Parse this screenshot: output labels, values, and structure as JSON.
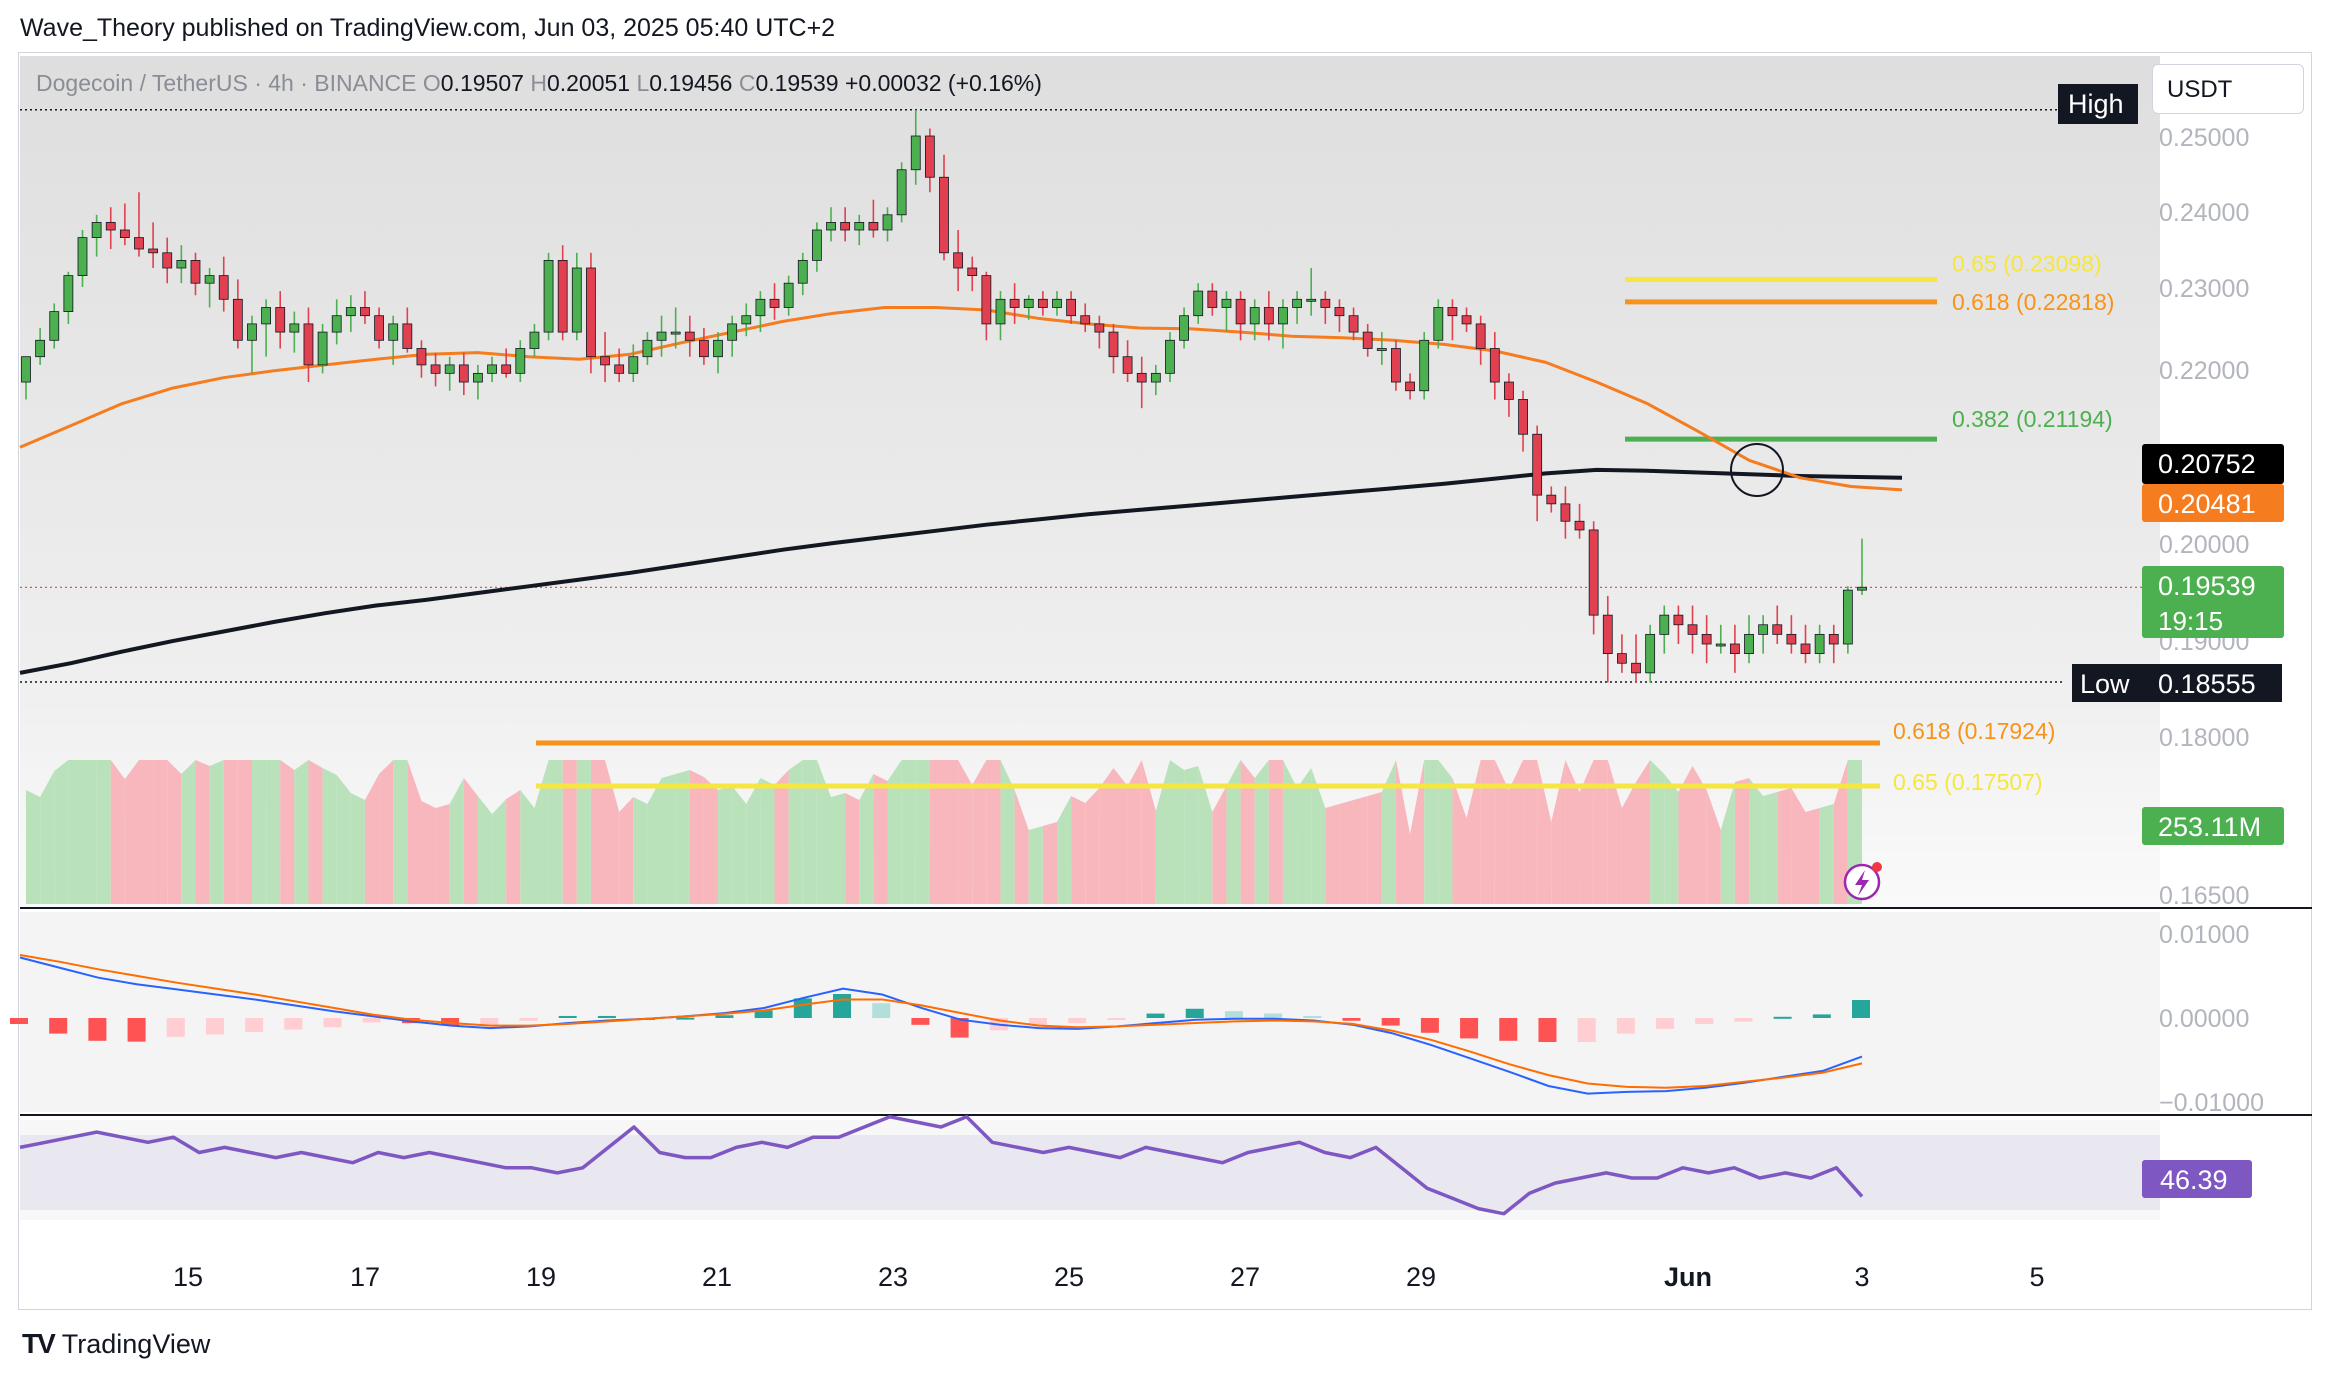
{
  "header": {
    "publisher_line": "Wave_Theory published on TradingView.com, Jun 03, 2025 05:40 UTC+2"
  },
  "symbol": {
    "name": "Dogecoin / TetherUS · 4h · BINANCE",
    "open_label": "O",
    "open": "0.19507",
    "high_label": "H",
    "high": "0.20051",
    "low_label": "L",
    "low": "0.19456",
    "close_label": "C",
    "close": "0.19539",
    "change": "+0.00032 (+0.16%)"
  },
  "currency_button": "USDT",
  "footer": {
    "logo": "TV",
    "brand": "TradingView"
  },
  "chart_data": {
    "type": "candlestick",
    "interval": "4h",
    "x_ticks": [
      "15",
      "17",
      "19",
      "21",
      "23",
      "25",
      "27",
      "29",
      "Jun",
      "3",
      "5"
    ],
    "price_ticks": [
      "0.25000",
      "0.24000",
      "0.23000",
      "0.22000",
      "0.20000",
      "0.19000",
      "0.18000",
      "0.16500"
    ],
    "price_anchors": [
      {
        "p": 0.25,
        "y": 136
      },
      {
        "p": 0.24,
        "y": 211
      },
      {
        "p": 0.23,
        "y": 287
      },
      {
        "p": 0.22,
        "y": 369
      },
      {
        "p": 0.2,
        "y": 543
      },
      {
        "p": 0.18555,
        "y": 682
      },
      {
        "p": 0.18,
        "y": 736
      },
      {
        "p": 0.165,
        "y": 894
      }
    ],
    "price_axis_labels": [
      {
        "text": "0.20752",
        "bg": "#000000",
        "fg": "#ffffff"
      },
      {
        "text": "0.20481",
        "bg": "#f57c1f",
        "fg": "#ffffff"
      },
      {
        "text": "0.19539",
        "bg": "#4caf50",
        "fg": "#ffffff",
        "sub": "19:15"
      },
      {
        "text": "253.11M",
        "bg": "#4caf50",
        "fg": "#ffffff"
      }
    ],
    "high_marker": {
      "label": "High"
    },
    "low_marker": {
      "label": "Low",
      "value": "0.18555"
    },
    "fib_levels": [
      {
        "label": "0.65 (0.23098)",
        "price": 0.23098,
        "color": "#f5e642"
      },
      {
        "label": "0.618 (0.22818)",
        "price": 0.22818,
        "color": "#f7931a"
      },
      {
        "label": "0.382 (0.21194)",
        "price": 0.21194,
        "color": "#4caf50"
      },
      {
        "label": "0.618 (0.17924)",
        "price": 0.17924,
        "color": "#f7931a"
      },
      {
        "label": "0.65 (0.17507)",
        "price": 0.17507,
        "color": "#f5e642"
      }
    ],
    "candles": [
      {
        "o": 0.2185,
        "h": 0.2215,
        "l": 0.2165,
        "c": 0.2215
      },
      {
        "o": 0.2215,
        "h": 0.225,
        "l": 0.2205,
        "c": 0.2235
      },
      {
        "o": 0.2235,
        "h": 0.228,
        "l": 0.2225,
        "c": 0.227
      },
      {
        "o": 0.227,
        "h": 0.232,
        "l": 0.2255,
        "c": 0.2315
      },
      {
        "o": 0.2315,
        "h": 0.2375,
        "l": 0.23,
        "c": 0.2365
      },
      {
        "o": 0.2365,
        "h": 0.2395,
        "l": 0.234,
        "c": 0.2385
      },
      {
        "o": 0.2385,
        "h": 0.2405,
        "l": 0.235,
        "c": 0.2375
      },
      {
        "o": 0.2375,
        "h": 0.241,
        "l": 0.2355,
        "c": 0.2365
      },
      {
        "o": 0.2365,
        "h": 0.2425,
        "l": 0.234,
        "c": 0.235
      },
      {
        "o": 0.235,
        "h": 0.2385,
        "l": 0.2325,
        "c": 0.2345
      },
      {
        "o": 0.2345,
        "h": 0.2365,
        "l": 0.2305,
        "c": 0.2325
      },
      {
        "o": 0.2325,
        "h": 0.2355,
        "l": 0.2305,
        "c": 0.2335
      },
      {
        "o": 0.2335,
        "h": 0.2345,
        "l": 0.229,
        "c": 0.2305
      },
      {
        "o": 0.2305,
        "h": 0.2325,
        "l": 0.2275,
        "c": 0.2315
      },
      {
        "o": 0.2315,
        "h": 0.234,
        "l": 0.227,
        "c": 0.2285
      },
      {
        "o": 0.2285,
        "h": 0.231,
        "l": 0.2225,
        "c": 0.2235
      },
      {
        "o": 0.2235,
        "h": 0.2265,
        "l": 0.2195,
        "c": 0.2255
      },
      {
        "o": 0.2255,
        "h": 0.2285,
        "l": 0.2215,
        "c": 0.2275
      },
      {
        "o": 0.2275,
        "h": 0.2295,
        "l": 0.2225,
        "c": 0.2245
      },
      {
        "o": 0.2245,
        "h": 0.227,
        "l": 0.222,
        "c": 0.2255
      },
      {
        "o": 0.2255,
        "h": 0.2275,
        "l": 0.2185,
        "c": 0.2205
      },
      {
        "o": 0.2205,
        "h": 0.2255,
        "l": 0.2195,
        "c": 0.2245
      },
      {
        "o": 0.2245,
        "h": 0.2285,
        "l": 0.223,
        "c": 0.2265
      },
      {
        "o": 0.2265,
        "h": 0.229,
        "l": 0.2245,
        "c": 0.2275
      },
      {
        "o": 0.2275,
        "h": 0.2295,
        "l": 0.2255,
        "c": 0.2265
      },
      {
        "o": 0.2265,
        "h": 0.2275,
        "l": 0.2225,
        "c": 0.2235
      },
      {
        "o": 0.2235,
        "h": 0.2265,
        "l": 0.2205,
        "c": 0.2255
      },
      {
        "o": 0.2255,
        "h": 0.2275,
        "l": 0.222,
        "c": 0.2225
      },
      {
        "o": 0.2225,
        "h": 0.2235,
        "l": 0.219,
        "c": 0.2205
      },
      {
        "o": 0.2205,
        "h": 0.222,
        "l": 0.218,
        "c": 0.2195
      },
      {
        "o": 0.2195,
        "h": 0.2215,
        "l": 0.2175,
        "c": 0.2205
      },
      {
        "o": 0.2205,
        "h": 0.222,
        "l": 0.217,
        "c": 0.2185
      },
      {
        "o": 0.2185,
        "h": 0.2205,
        "l": 0.2165,
        "c": 0.2195
      },
      {
        "o": 0.2195,
        "h": 0.2215,
        "l": 0.2185,
        "c": 0.2205
      },
      {
        "o": 0.2205,
        "h": 0.2225,
        "l": 0.219,
        "c": 0.2195
      },
      {
        "o": 0.2195,
        "h": 0.2235,
        "l": 0.2185,
        "c": 0.2225
      },
      {
        "o": 0.2225,
        "h": 0.2255,
        "l": 0.2215,
        "c": 0.2245
      },
      {
        "o": 0.2245,
        "h": 0.2345,
        "l": 0.2235,
        "c": 0.2335
      },
      {
        "o": 0.2335,
        "h": 0.2355,
        "l": 0.2235,
        "c": 0.2245
      },
      {
        "o": 0.2245,
        "h": 0.2345,
        "l": 0.2235,
        "c": 0.2325
      },
      {
        "o": 0.2325,
        "h": 0.2345,
        "l": 0.2195,
        "c": 0.2215
      },
      {
        "o": 0.2215,
        "h": 0.2245,
        "l": 0.2185,
        "c": 0.2205
      },
      {
        "o": 0.2205,
        "h": 0.2225,
        "l": 0.2185,
        "c": 0.2195
      },
      {
        "o": 0.2195,
        "h": 0.223,
        "l": 0.2185,
        "c": 0.2215
      },
      {
        "o": 0.2215,
        "h": 0.2245,
        "l": 0.2205,
        "c": 0.2235
      },
      {
        "o": 0.2235,
        "h": 0.2265,
        "l": 0.2215,
        "c": 0.2245
      },
      {
        "o": 0.2245,
        "h": 0.2275,
        "l": 0.2225,
        "c": 0.2245
      },
      {
        "o": 0.2245,
        "h": 0.2265,
        "l": 0.2215,
        "c": 0.2235
      },
      {
        "o": 0.2235,
        "h": 0.225,
        "l": 0.2205,
        "c": 0.2215
      },
      {
        "o": 0.2215,
        "h": 0.2245,
        "l": 0.2195,
        "c": 0.2235
      },
      {
        "o": 0.2235,
        "h": 0.2265,
        "l": 0.2215,
        "c": 0.2255
      },
      {
        "o": 0.2255,
        "h": 0.228,
        "l": 0.224,
        "c": 0.2265
      },
      {
        "o": 0.2265,
        "h": 0.2295,
        "l": 0.2245,
        "c": 0.2285
      },
      {
        "o": 0.2285,
        "h": 0.2305,
        "l": 0.226,
        "c": 0.2275
      },
      {
        "o": 0.2275,
        "h": 0.2315,
        "l": 0.2265,
        "c": 0.2305
      },
      {
        "o": 0.2305,
        "h": 0.2345,
        "l": 0.229,
        "c": 0.2335
      },
      {
        "o": 0.2335,
        "h": 0.2385,
        "l": 0.232,
        "c": 0.2375
      },
      {
        "o": 0.2375,
        "h": 0.2405,
        "l": 0.236,
        "c": 0.2385
      },
      {
        "o": 0.2385,
        "h": 0.2405,
        "l": 0.236,
        "c": 0.2375
      },
      {
        "o": 0.2375,
        "h": 0.2395,
        "l": 0.2355,
        "c": 0.2385
      },
      {
        "o": 0.2385,
        "h": 0.2415,
        "l": 0.2365,
        "c": 0.2375
      },
      {
        "o": 0.2375,
        "h": 0.2405,
        "l": 0.236,
        "c": 0.2395
      },
      {
        "o": 0.2395,
        "h": 0.2465,
        "l": 0.2385,
        "c": 0.2455
      },
      {
        "o": 0.2455,
        "h": 0.2535,
        "l": 0.2435,
        "c": 0.25
      },
      {
        "o": 0.25,
        "h": 0.251,
        "l": 0.2425,
        "c": 0.2445
      },
      {
        "o": 0.2445,
        "h": 0.2475,
        "l": 0.2335,
        "c": 0.2345
      },
      {
        "o": 0.2345,
        "h": 0.2375,
        "l": 0.2295,
        "c": 0.2325
      },
      {
        "o": 0.2325,
        "h": 0.234,
        "l": 0.2295,
        "c": 0.2315
      },
      {
        "o": 0.2315,
        "h": 0.232,
        "l": 0.2235,
        "c": 0.2255
      },
      {
        "o": 0.2255,
        "h": 0.2295,
        "l": 0.2235,
        "c": 0.2285
      },
      {
        "o": 0.2285,
        "h": 0.2305,
        "l": 0.2255,
        "c": 0.2275
      },
      {
        "o": 0.2275,
        "h": 0.229,
        "l": 0.226,
        "c": 0.2285
      },
      {
        "o": 0.2285,
        "h": 0.2295,
        "l": 0.2265,
        "c": 0.2275
      },
      {
        "o": 0.2275,
        "h": 0.2295,
        "l": 0.2265,
        "c": 0.2285
      },
      {
        "o": 0.2285,
        "h": 0.2295,
        "l": 0.2255,
        "c": 0.2265
      },
      {
        "o": 0.2265,
        "h": 0.228,
        "l": 0.2245,
        "c": 0.2255
      },
      {
        "o": 0.2255,
        "h": 0.2265,
        "l": 0.2225,
        "c": 0.2245
      },
      {
        "o": 0.2245,
        "h": 0.2255,
        "l": 0.2195,
        "c": 0.2215
      },
      {
        "o": 0.2215,
        "h": 0.2235,
        "l": 0.2185,
        "c": 0.2195
      },
      {
        "o": 0.2195,
        "h": 0.2215,
        "l": 0.2155,
        "c": 0.2185
      },
      {
        "o": 0.2185,
        "h": 0.2205,
        "l": 0.217,
        "c": 0.2195
      },
      {
        "o": 0.2195,
        "h": 0.2245,
        "l": 0.2185,
        "c": 0.2235
      },
      {
        "o": 0.2235,
        "h": 0.2275,
        "l": 0.2225,
        "c": 0.2265
      },
      {
        "o": 0.2265,
        "h": 0.2305,
        "l": 0.2255,
        "c": 0.2295
      },
      {
        "o": 0.2295,
        "h": 0.2305,
        "l": 0.2265,
        "c": 0.2275
      },
      {
        "o": 0.2275,
        "h": 0.2295,
        "l": 0.2245,
        "c": 0.2285
      },
      {
        "o": 0.2285,
        "h": 0.2295,
        "l": 0.2235,
        "c": 0.2255
      },
      {
        "o": 0.2255,
        "h": 0.2285,
        "l": 0.2235,
        "c": 0.2275
      },
      {
        "o": 0.2275,
        "h": 0.2295,
        "l": 0.2235,
        "c": 0.2255
      },
      {
        "o": 0.2255,
        "h": 0.2285,
        "l": 0.2225,
        "c": 0.2275
      },
      {
        "o": 0.2275,
        "h": 0.2295,
        "l": 0.2255,
        "c": 0.2285
      },
      {
        "o": 0.2285,
        "h": 0.2325,
        "l": 0.2265,
        "c": 0.2285
      },
      {
        "o": 0.2285,
        "h": 0.2295,
        "l": 0.2255,
        "c": 0.2275
      },
      {
        "o": 0.2275,
        "h": 0.2285,
        "l": 0.2245,
        "c": 0.2265
      },
      {
        "o": 0.2265,
        "h": 0.2275,
        "l": 0.2235,
        "c": 0.2245
      },
      {
        "o": 0.2245,
        "h": 0.2255,
        "l": 0.2215,
        "c": 0.2225
      },
      {
        "o": 0.2225,
        "h": 0.2245,
        "l": 0.2205,
        "c": 0.2225
      },
      {
        "o": 0.2225,
        "h": 0.2235,
        "l": 0.2175,
        "c": 0.2185
      },
      {
        "o": 0.2185,
        "h": 0.2195,
        "l": 0.2165,
        "c": 0.2175
      },
      {
        "o": 0.2175,
        "h": 0.2245,
        "l": 0.2165,
        "c": 0.2235
      },
      {
        "o": 0.2235,
        "h": 0.2285,
        "l": 0.2225,
        "c": 0.2275
      },
      {
        "o": 0.2275,
        "h": 0.2285,
        "l": 0.2235,
        "c": 0.2265
      },
      {
        "o": 0.2265,
        "h": 0.2275,
        "l": 0.2245,
        "c": 0.2255
      },
      {
        "o": 0.2255,
        "h": 0.2265,
        "l": 0.2205,
        "c": 0.2225
      },
      {
        "o": 0.2225,
        "h": 0.2245,
        "l": 0.2165,
        "c": 0.2185
      },
      {
        "o": 0.2185,
        "h": 0.2195,
        "l": 0.2145,
        "c": 0.2165
      },
      {
        "o": 0.2165,
        "h": 0.2175,
        "l": 0.2105,
        "c": 0.2125
      },
      {
        "o": 0.2125,
        "h": 0.2135,
        "l": 0.2025,
        "c": 0.2055
      },
      {
        "o": 0.2055,
        "h": 0.2065,
        "l": 0.2035,
        "c": 0.2045
      },
      {
        "o": 0.2045,
        "h": 0.2065,
        "l": 0.2005,
        "c": 0.2025
      },
      {
        "o": 0.2025,
        "h": 0.2045,
        "l": 0.2005,
        "c": 0.2015
      },
      {
        "o": 0.2015,
        "h": 0.2025,
        "l": 0.1905,
        "c": 0.1925
      },
      {
        "o": 0.1925,
        "h": 0.1945,
        "l": 0.1855,
        "c": 0.1885
      },
      {
        "o": 0.1885,
        "h": 0.1905,
        "l": 0.1865,
        "c": 0.1875
      },
      {
        "o": 0.1875,
        "h": 0.1905,
        "l": 0.1855,
        "c": 0.1865
      },
      {
        "o": 0.1865,
        "h": 0.1915,
        "l": 0.1855,
        "c": 0.1905
      },
      {
        "o": 0.1905,
        "h": 0.1935,
        "l": 0.1885,
        "c": 0.1925
      },
      {
        "o": 0.1925,
        "h": 0.1935,
        "l": 0.1895,
        "c": 0.1915
      },
      {
        "o": 0.1915,
        "h": 0.1935,
        "l": 0.1885,
        "c": 0.1905
      },
      {
        "o": 0.1905,
        "h": 0.1925,
        "l": 0.1875,
        "c": 0.1895
      },
      {
        "o": 0.1895,
        "h": 0.1915,
        "l": 0.1885,
        "c": 0.1895
      },
      {
        "o": 0.1895,
        "h": 0.1915,
        "l": 0.1865,
        "c": 0.1885
      },
      {
        "o": 0.1885,
        "h": 0.1925,
        "l": 0.1875,
        "c": 0.1905
      },
      {
        "o": 0.1905,
        "h": 0.1925,
        "l": 0.1885,
        "c": 0.1915
      },
      {
        "o": 0.1915,
        "h": 0.1935,
        "l": 0.1895,
        "c": 0.1905
      },
      {
        "o": 0.1905,
        "h": 0.1925,
        "l": 0.1885,
        "c": 0.1895
      },
      {
        "o": 0.1895,
        "h": 0.1915,
        "l": 0.1875,
        "c": 0.1885
      },
      {
        "o": 0.1885,
        "h": 0.1915,
        "l": 0.1875,
        "c": 0.1905
      },
      {
        "o": 0.1905,
        "h": 0.1915,
        "l": 0.1875,
        "c": 0.1895
      },
      {
        "o": 0.1895,
        "h": 0.1955,
        "l": 0.1885,
        "c": 0.1951
      },
      {
        "o": 0.1951,
        "h": 0.2005,
        "l": 0.1946,
        "c": 0.1954
      }
    ],
    "ema_orange": [
      0.211,
      0.2135,
      0.216,
      0.2178,
      0.219,
      0.2198,
      0.2205,
      0.2212,
      0.2218,
      0.222,
      0.2215,
      0.2212,
      0.2218,
      0.2232,
      0.2245,
      0.2258,
      0.2268,
      0.2275,
      0.2275,
      0.2272,
      0.2262,
      0.2255,
      0.225,
      0.2249,
      0.2245,
      0.224,
      0.2238,
      0.2235,
      0.223,
      0.2222,
      0.2208,
      0.2185,
      0.216,
      0.2128,
      0.2095,
      0.2075,
      0.2065,
      0.2061
    ],
    "ema_black": [
      0.1865,
      0.1875,
      0.1887,
      0.1898,
      0.1908,
      0.1918,
      0.1927,
      0.1935,
      0.1941,
      0.1948,
      0.1955,
      0.1962,
      0.1969,
      0.1977,
      0.1985,
      0.1993,
      0.2,
      0.2007,
      0.2014,
      0.2021,
      0.2027,
      0.2033,
      0.2038,
      0.2043,
      0.2048,
      0.2053,
      0.2058,
      0.2063,
      0.2068,
      0.2074,
      0.208,
      0.2084,
      0.2083,
      0.2081,
      0.2079,
      0.2077,
      0.2076,
      0.2075
    ],
    "rsi_axis_value": "46.39",
    "rsi": [
      56,
      57,
      58,
      59,
      58,
      57,
      58,
      55,
      56,
      55,
      54,
      55,
      54,
      53,
      55,
      54,
      55,
      54,
      53,
      52,
      52,
      51,
      52,
      56,
      60,
      55,
      54,
      54,
      56,
      57,
      56,
      58,
      58,
      60,
      62,
      61,
      60,
      62,
      57,
      56,
      55,
      56,
      55,
      54,
      56,
      55,
      54,
      53,
      55,
      56,
      57,
      55,
      54,
      56,
      52,
      48,
      46,
      44,
      43,
      47,
      49,
      50,
      51,
      50,
      50,
      52,
      51,
      52,
      50,
      51,
      50,
      52,
      46.39
    ],
    "macd_ticks": [
      "0.01000",
      "0.00000",
      "−0.01000"
    ],
    "macd_line": [
      0.0072,
      0.006,
      0.0048,
      0.004,
      0.0034,
      0.0028,
      0.0022,
      0.0015,
      0.0008,
      0.0002,
      -0.0004,
      -0.0009,
      -0.0012,
      -0.001,
      -0.0006,
      -0.0003,
      -0.0001,
      0.0002,
      0.0006,
      0.0012,
      0.0024,
      0.0035,
      0.0028,
      0.0012,
      -0.0002,
      -0.0008,
      -0.0012,
      -0.0013,
      -0.001,
      -0.0006,
      -0.0002,
      -0.0001,
      -0.0001,
      -0.0003,
      -0.0008,
      -0.0018,
      -0.0032,
      -0.0048,
      -0.0064,
      -0.0081,
      -0.009,
      -0.0088,
      -0.0087,
      -0.0083,
      -0.0077,
      -0.007,
      -0.0063,
      -0.0046
    ],
    "macd_signal": [
      0.0075,
      0.0067,
      0.0058,
      0.005,
      0.0042,
      0.0035,
      0.0028,
      0.002,
      0.0012,
      0.0004,
      -0.0002,
      -0.0006,
      -0.0009,
      -0.0009,
      -0.0007,
      -0.0004,
      -0.0001,
      0.0002,
      0.0005,
      0.0009,
      0.0016,
      0.0022,
      0.0022,
      0.0015,
      0.0006,
      -0.0003,
      -0.0009,
      -0.0011,
      -0.001,
      -0.0008,
      -0.0006,
      -0.0004,
      -0.0003,
      -0.0004,
      -0.0007,
      -0.0015,
      -0.0026,
      -0.004,
      -0.0055,
      -0.0068,
      -0.0078,
      -0.0082,
      -0.0083,
      -0.0081,
      -0.0076,
      -0.0071,
      -0.0065,
      -0.0054
    ]
  }
}
